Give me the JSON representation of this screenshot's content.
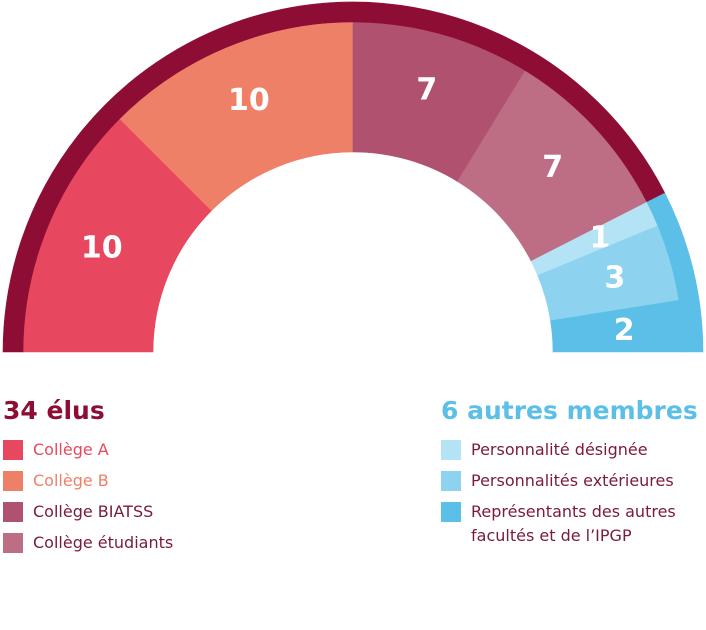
{
  "chart_data": {
    "type": "half-donut",
    "groups": [
      {
        "name": "34 élus",
        "color": "#8e0d35",
        "segments": [
          {
            "name": "Collège A",
            "color": "#e8485f",
            "value": 10
          },
          {
            "name": "Collège B",
            "color": "#ef8068",
            "value": 10
          },
          {
            "name": "Collège BIATSS",
            "color": "#b0526f",
            "value": 7
          },
          {
            "name": "Collège étudiants",
            "color": "#bd6e85",
            "value": 7
          }
        ]
      },
      {
        "name": "6 autres membres",
        "color": "#5bbfe8",
        "segments": [
          {
            "name": "Personnalité désignée",
            "color": "#b3e3f4",
            "value": 1
          },
          {
            "name": "Personnalités extérieures",
            "color": "#8dd3ef",
            "value": 3
          },
          {
            "name": "Représentants des autres facultés et de l’IPGP",
            "color": "#5bbfe8",
            "value": 2
          }
        ]
      }
    ]
  }
}
